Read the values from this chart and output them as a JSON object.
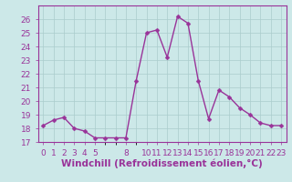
{
  "x": [
    0,
    1,
    2,
    3,
    4,
    5,
    6,
    7,
    8,
    9,
    10,
    11,
    12,
    13,
    14,
    15,
    16,
    17,
    18,
    19,
    20,
    21,
    22,
    23
  ],
  "y": [
    18.2,
    18.6,
    18.8,
    18.0,
    17.8,
    17.3,
    17.3,
    17.3,
    17.3,
    21.5,
    25.0,
    25.2,
    23.2,
    26.2,
    25.7,
    21.5,
    18.7,
    20.8,
    20.3,
    19.5,
    19.0,
    18.4,
    18.2,
    18.2
  ],
  "line_color": "#993399",
  "marker_color": "#993399",
  "bg_color": "#cce8e8",
  "grid_color": "#aacccc",
  "axis_color": "#993399",
  "xlabel": "Windchill (Refroidissement éolien,°C)",
  "ylim": [
    17,
    27
  ],
  "yticks": [
    17,
    18,
    19,
    20,
    21,
    22,
    23,
    24,
    25,
    26
  ],
  "xlim": [
    -0.5,
    23.5
  ],
  "xtick_positions": [
    0,
    1,
    2,
    3,
    4,
    5,
    8,
    10,
    11,
    12,
    13,
    14,
    15,
    16,
    17,
    18,
    19,
    20,
    21,
    22,
    23
  ],
  "xtick_labels": [
    "0",
    "1",
    "2",
    "3",
    "4",
    "5",
    "8",
    "10",
    "11",
    "12",
    "13",
    "14",
    "15",
    "16",
    "17",
    "18",
    "19",
    "20",
    "21",
    "22",
    "23"
  ],
  "tick_fontsize": 6.5,
  "xlabel_fontsize": 7.5,
  "linewidth": 1.0,
  "markersize": 2.5
}
